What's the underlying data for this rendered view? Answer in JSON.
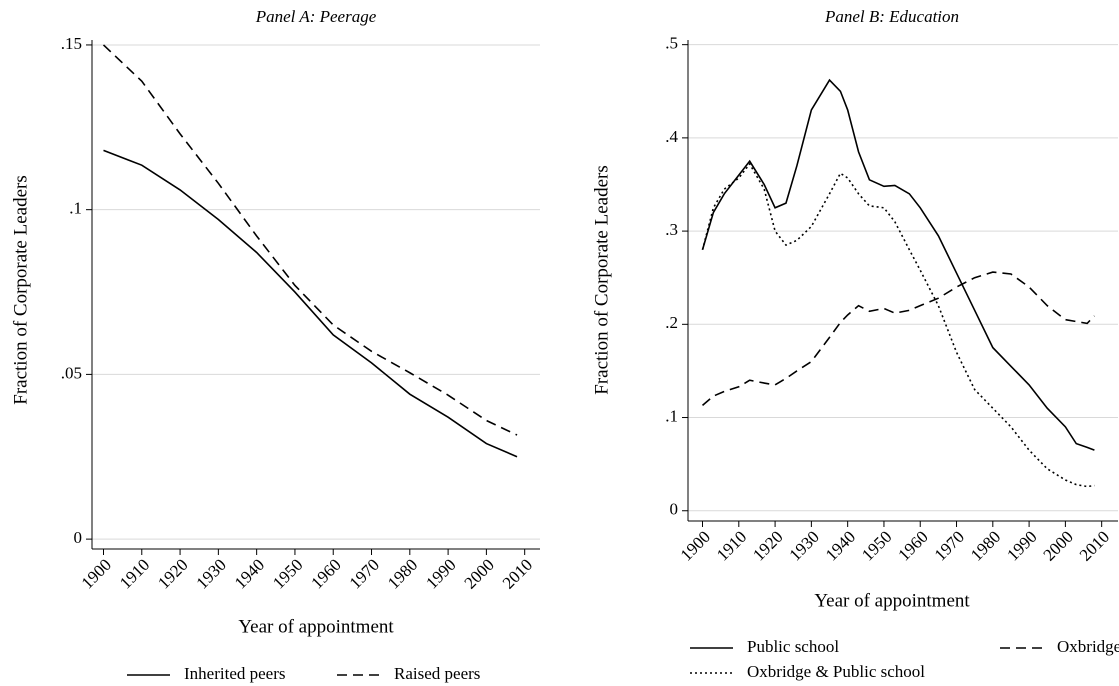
{
  "chart_data": [
    {
      "type": "line",
      "title": "Panel A: Peerage",
      "x_label": "Year of appointment",
      "y_label": "Fraction of Corporate Leaders",
      "x": [
        1900,
        1910,
        1920,
        1930,
        1940,
        1950,
        1960,
        1970,
        1980,
        1990,
        2000,
        2008
      ],
      "series": [
        {
          "name": "Inherited peers",
          "color": "#000000",
          "dash": "solid",
          "values": [
            0.118,
            0.1135,
            0.106,
            0.097,
            0.087,
            0.075,
            0.062,
            0.0535,
            0.044,
            0.037,
            0.029,
            0.025
          ]
        },
        {
          "name": "Raised peers",
          "color": "#000000",
          "dash": "dashed",
          "values": [
            0.15,
            0.139,
            0.123,
            0.108,
            0.092,
            0.077,
            0.065,
            0.057,
            0.0505,
            0.0437,
            0.036,
            0.0316
          ]
        }
      ],
      "xlim": [
        1897,
        2014
      ],
      "xticks": [
        1900,
        1910,
        1920,
        1930,
        1940,
        1950,
        1960,
        1970,
        1980,
        1990,
        2000,
        2010
      ],
      "ylim": [
        -0.003,
        0.1515
      ],
      "yticks": [
        0,
        {
          "value": 0.05,
          "label": ".05"
        },
        {
          "value": 0.1,
          "label": ".1"
        },
        {
          "value": 0.15,
          "label": ".15"
        }
      ],
      "grid": true,
      "legend": "bottom"
    },
    {
      "type": "line",
      "title": "Panel B: Education",
      "x_label": "Year of appointment",
      "y_label": "Fraction of Corporate Leaders",
      "x": [
        1900,
        1903,
        1906,
        1910,
        1913,
        1917,
        1920,
        1923,
        1926,
        1930,
        1935,
        1938,
        1940,
        1943,
        1946,
        1950,
        1953,
        1957,
        1960,
        1965,
        1970,
        1975,
        1980,
        1985,
        1990,
        1995,
        2000,
        2003,
        2006,
        2008
      ],
      "series": [
        {
          "name": "Public school",
          "color": "#000000",
          "dash": "solid",
          "values": [
            0.28,
            0.32,
            0.34,
            0.36,
            0.375,
            0.35,
            0.325,
            0.33,
            0.37,
            0.43,
            0.462,
            0.45,
            0.43,
            0.385,
            0.355,
            0.348,
            0.349,
            0.34,
            0.325,
            0.295,
            0.255,
            0.215,
            0.175,
            0.155,
            0.135,
            0.11,
            0.09,
            0.072,
            0.068,
            0.065
          ]
        },
        {
          "name": "Oxbridge",
          "color": "#000000",
          "dash": "dashed",
          "values": [
            0.113,
            0.123,
            0.128,
            0.133,
            0.14,
            0.137,
            0.135,
            0.142,
            0.15,
            0.16,
            0.186,
            0.202,
            0.21,
            0.22,
            0.214,
            0.217,
            0.212,
            0.215,
            0.22,
            0.228,
            0.24,
            0.25,
            0.256,
            0.254,
            0.24,
            0.22,
            0.205,
            0.203,
            0.201,
            0.209
          ]
        },
        {
          "name": "Oxbridge & Public school",
          "color": "#000000",
          "dash": "dotted",
          "values": [
            0.28,
            0.325,
            0.345,
            0.357,
            0.372,
            0.345,
            0.3,
            0.285,
            0.29,
            0.305,
            0.34,
            0.362,
            0.357,
            0.34,
            0.327,
            0.325,
            0.31,
            0.28,
            0.258,
            0.22,
            0.17,
            0.13,
            0.11,
            0.09,
            0.065,
            0.045,
            0.033,
            0.028,
            0.026,
            0.027
          ]
        }
      ],
      "xlim": [
        1896,
        2014.5
      ],
      "xticks": [
        1900,
        1910,
        1920,
        1930,
        1940,
        1950,
        1960,
        1970,
        1980,
        1990,
        2000,
        2010
      ],
      "ylim": [
        -0.011,
        0.505
      ],
      "yticks": [
        0,
        {
          "value": 0.1,
          "label": ".1"
        },
        {
          "value": 0.2,
          "label": ".2"
        },
        {
          "value": 0.3,
          "label": ".3"
        },
        {
          "value": 0.4,
          "label": ".4"
        },
        {
          "value": 0.5,
          "label": ".5"
        }
      ],
      "grid": true,
      "legend": "bottom"
    }
  ]
}
